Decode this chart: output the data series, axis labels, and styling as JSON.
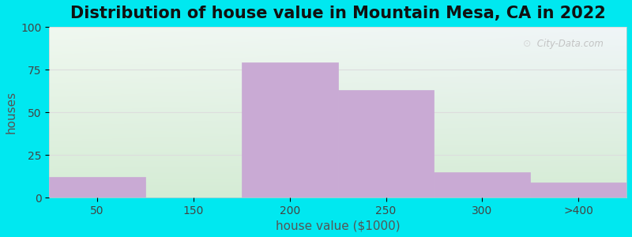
{
  "title": "Distribution of house value in Mountain Mesa, CA in 2022",
  "xlabel": "house value ($1000)",
  "ylabel": "houses",
  "bar_labels": [
    "50",
    "150",
    "200",
    "250",
    "300",
    ">400"
  ],
  "bar_heights": [
    12,
    0,
    79,
    63,
    15,
    9
  ],
  "bar_color": "#c9aad4",
  "bar_edgecolor": "#c9aad4",
  "ylim": [
    0,
    100
  ],
  "yticks": [
    0,
    25,
    50,
    75,
    100
  ],
  "outer_bg": "#00e8f0",
  "plot_bg_top": "#eef5ee",
  "plot_bg_bottom": "#daeeda",
  "plot_bg_top_right": "#eef5f5",
  "title_fontsize": 15,
  "axis_fontsize": 11,
  "tick_fontsize": 10,
  "watermark": " City-Data.com",
  "grid_color": "#dddddd",
  "tick_color": "#444444",
  "title_color": "#111111",
  "label_color": "#555555"
}
